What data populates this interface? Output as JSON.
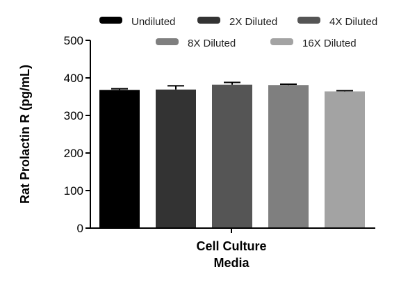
{
  "chart_data": {
    "type": "bar",
    "title": "",
    "ylabel": "Rat Prolactin R (pg/mL)",
    "xlabel": [
      "Cell Culture",
      "Media"
    ],
    "ylim": [
      0,
      500
    ],
    "yticks": [
      0,
      100,
      200,
      300,
      400,
      500
    ],
    "grid": false,
    "legend_position": "top",
    "series": [
      {
        "name": "Undiluted",
        "value": 368,
        "error": 3,
        "color": "#000000"
      },
      {
        "name": "2X Diluted",
        "value": 369,
        "error": 10,
        "color": "#333333"
      },
      {
        "name": "4X Diluted",
        "value": 382,
        "error": 6,
        "color": "#555555"
      },
      {
        "name": "8X Diluted",
        "value": 381,
        "error": 2,
        "color": "#7f7f7f"
      },
      {
        "name": "16X Diluted",
        "value": 364,
        "error": 2,
        "color": "#a3a3a3"
      }
    ]
  }
}
